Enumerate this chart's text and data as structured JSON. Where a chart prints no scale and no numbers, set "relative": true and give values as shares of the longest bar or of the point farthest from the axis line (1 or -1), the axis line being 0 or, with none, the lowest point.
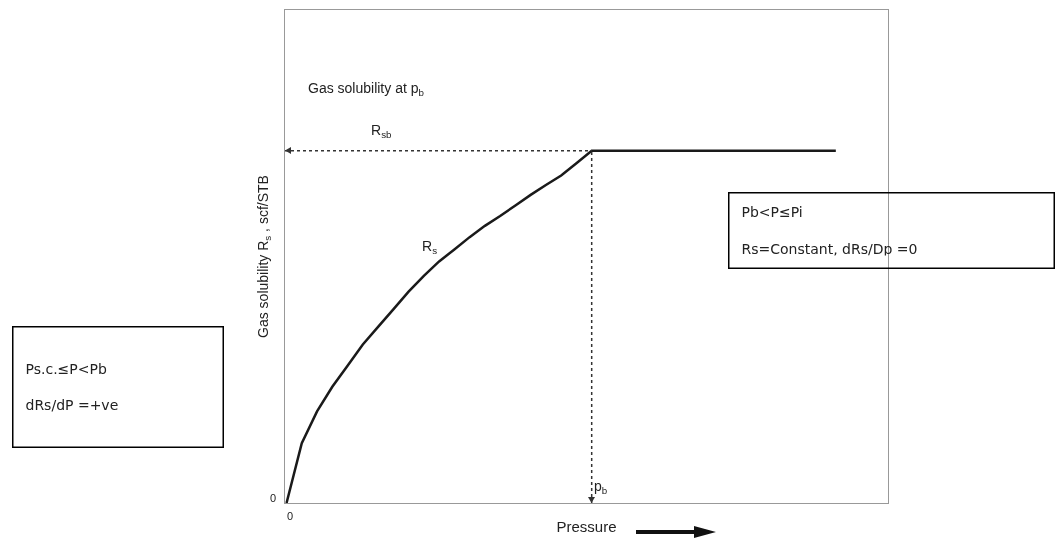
{
  "chart_data": {
    "type": "line",
    "relative": true,
    "xlabel": "Pressure",
    "ylabel": "Gas solubility R$_{s}$ , scf/STB",
    "categories": [
      null,
      null,
      null,
      null,
      null,
      null,
      null,
      null,
      null,
      null,
      null,
      null,
      null,
      null,
      null,
      null,
      null,
      null,
      null,
      null,
      null,
      null,
      null,
      null,
      null,
      null,
      null,
      null,
      null,
      null,
      null,
      null,
      null,
      null,
      null,
      null,
      null
    ],
    "series": [
      {
        "color": "#1a1a1a",
        "values": [
          0,
          0.17,
          0.26,
          0.33,
          0.39,
          0.45,
          0.5,
          0.55,
          0.6,
          0.645,
          0.686,
          0.72,
          0.755,
          0.787,
          0.815,
          0.845,
          0.875,
          0.903,
          0.93,
          0.965,
          1,
          1,
          1,
          1,
          1,
          1,
          1,
          1,
          1,
          1,
          1,
          1,
          1,
          1,
          1,
          1,
          1
        ]
      }
    ],
    "ref_lines": [
      {
        "axis": "y",
        "value": 1,
        "color": "#333333",
        "line_style": "dotted"
      }
    ],
    "annotations": [
      "0",
      "Gas solubility at p$_{b}$",
      "R$_{sb}$",
      "R$_{s}$",
      "Ps.c.≤P<Pb\n\ndRs/dP =+ve",
      "Pb<P≤Pi\n\nRs=Constant, dRs/Dp =0",
      "0",
      "p$_{b}$"
    ],
    "grid": false,
    "marker": "none",
    "line_style": "solid"
  }
}
